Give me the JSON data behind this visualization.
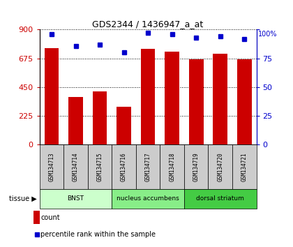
{
  "title": "GDS2344 / 1436947_a_at",
  "samples": [
    "GSM134713",
    "GSM134714",
    "GSM134715",
    "GSM134716",
    "GSM134717",
    "GSM134718",
    "GSM134719",
    "GSM134720",
    "GSM134721"
  ],
  "counts": [
    755,
    370,
    415,
    295,
    750,
    730,
    670,
    710,
    670
  ],
  "percentiles": [
    96,
    86,
    87,
    80,
    97,
    96,
    93,
    94,
    92
  ],
  "groups": [
    {
      "label": "BNST",
      "start": 0,
      "end": 3,
      "color": "#ccffcc"
    },
    {
      "label": "nucleus accumbens",
      "start": 3,
      "end": 6,
      "color": "#88ee88"
    },
    {
      "label": "dorsal striatum",
      "start": 6,
      "end": 9,
      "color": "#44cc44"
    }
  ],
  "bar_color": "#cc0000",
  "dot_color": "#0000cc",
  "left_axis_color": "#cc0000",
  "right_axis_color": "#0000cc",
  "ylim_left": [
    0,
    900
  ],
  "ylim_right": [
    0,
    100
  ],
  "yticks_left": [
    0,
    225,
    450,
    675,
    900
  ],
  "yticks_right": [
    0,
    25,
    50,
    75,
    100
  ],
  "sample_box_color": "#cccccc",
  "tissue_label": "tissue",
  "legend_count": "count",
  "legend_percentile": "percentile rank within the sample"
}
